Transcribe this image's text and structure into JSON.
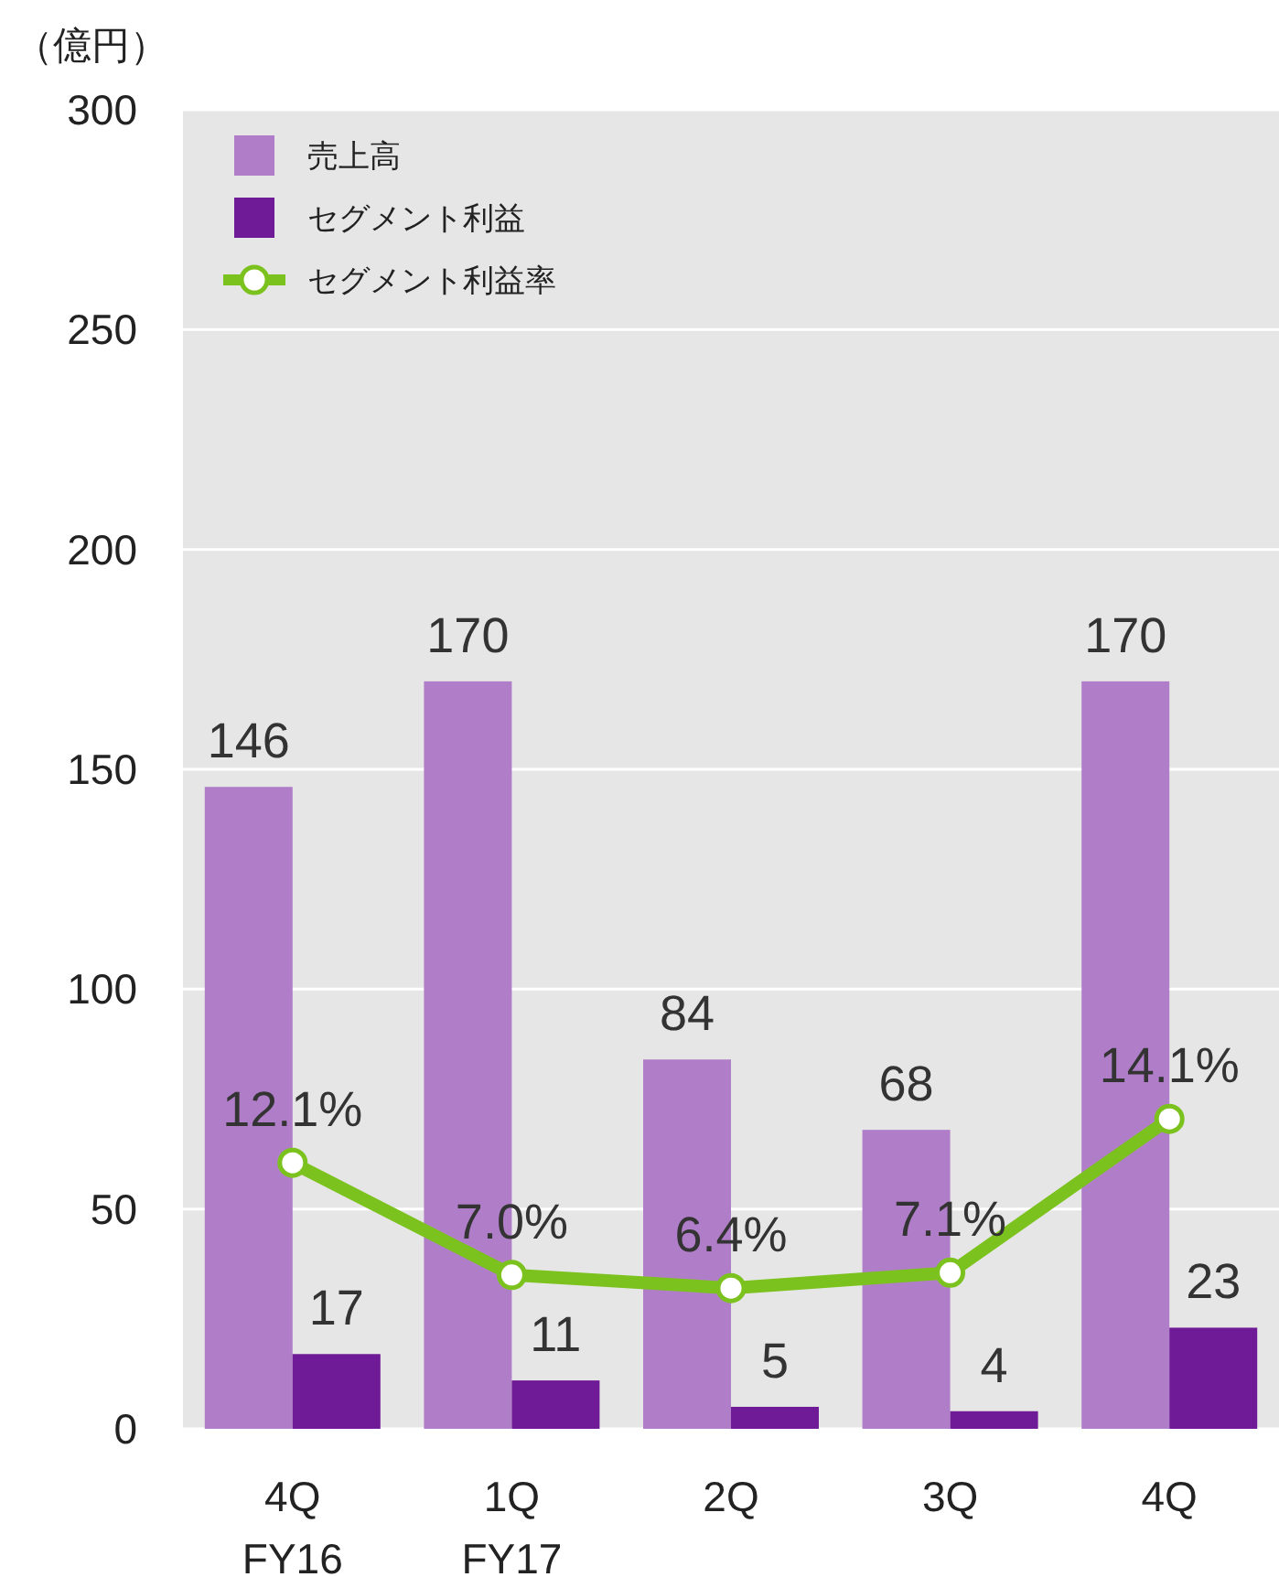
{
  "chart_data": {
    "type": "bar",
    "ylabel": "（億円）",
    "categories": [
      "4Q\nFY16",
      "1Q\nFY17",
      "2Q",
      "3Q",
      "4Q"
    ],
    "ylim": [
      0,
      300
    ],
    "yticks": [
      0,
      50,
      100,
      150,
      200,
      250,
      300
    ],
    "y2lim": [
      0,
      60
    ],
    "grid": "y",
    "legend": "top left",
    "data_labels": true,
    "series": [
      {
        "name": "売上高",
        "color": "#b07ec8",
        "values": [
          146,
          170,
          84,
          68,
          170
        ]
      },
      {
        "name": "セグメント利益",
        "color": "#6f1a96",
        "values": [
          17,
          11,
          5,
          4,
          23
        ]
      },
      {
        "name": "セグメント利益率",
        "type": "line",
        "axis": "y2",
        "color": "#7cc21e",
        "marker": "circle",
        "line_style": "solid",
        "values": [
          12.1,
          7.0,
          6.4,
          7.1,
          14.1
        ],
        "value_labels": [
          "12.1%",
          "7.0%",
          "6.4%",
          "7.1%",
          "14.1%"
        ]
      }
    ]
  }
}
